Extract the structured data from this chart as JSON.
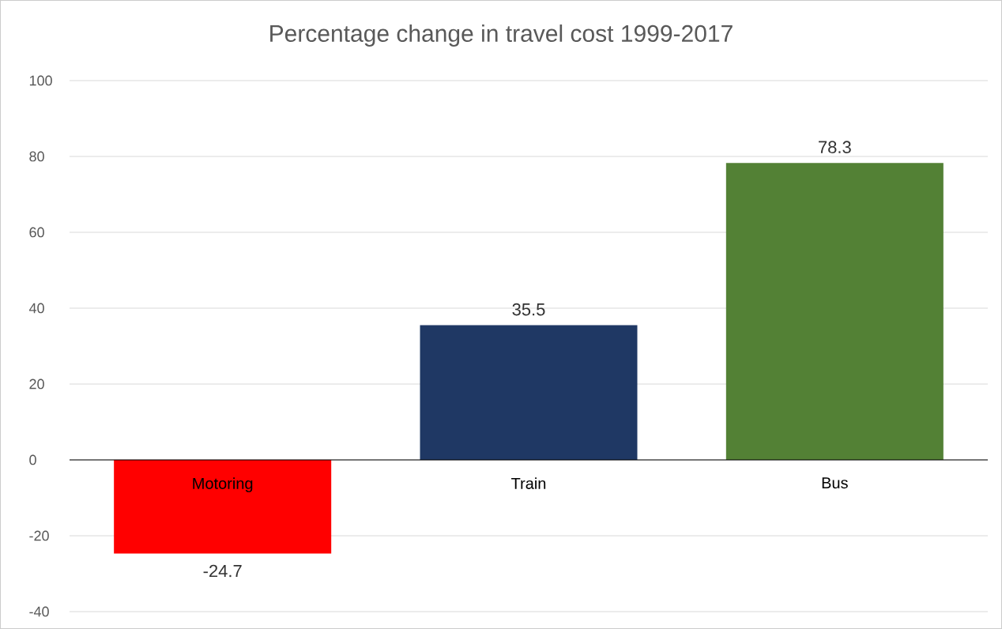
{
  "chart_data": {
    "type": "bar",
    "title": "Percentage change in travel cost 1999-2017",
    "categories": [
      "Motoring",
      "Train",
      "Bus"
    ],
    "values": [
      -24.7,
      35.5,
      78.3
    ],
    "colors": [
      "#ff0000",
      "#1f3864",
      "#538135"
    ],
    "ylim": [
      -40,
      100
    ],
    "yticks": [
      -40,
      -20,
      0,
      20,
      40,
      60,
      80,
      100
    ],
    "grid": "y",
    "data_labels": true
  }
}
